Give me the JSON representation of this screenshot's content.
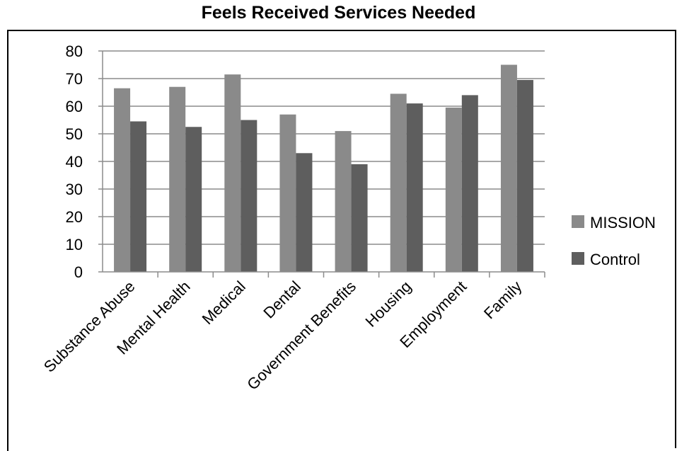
{
  "chart_data": {
    "type": "bar",
    "title": "Feels Received Services Needed",
    "categories": [
      "Substance Abuse",
      "Mental Health",
      "Medical",
      "Dental",
      "Government Benefits",
      "Housing",
      "Employment",
      "Family"
    ],
    "series": [
      {
        "name": "MISSION",
        "color": "#8a8a8a",
        "values": [
          66.5,
          67,
          71.5,
          57,
          51,
          64.5,
          59.5,
          75
        ]
      },
      {
        "name": "Control",
        "color": "#5e5e5e",
        "values": [
          54.5,
          52.5,
          55,
          43,
          39,
          61,
          64,
          69.5
        ]
      }
    ],
    "ylim": [
      0,
      80
    ],
    "yticks": [
      0,
      10,
      20,
      30,
      40,
      50,
      60,
      70,
      80
    ],
    "grid": true,
    "legend": "right"
  }
}
